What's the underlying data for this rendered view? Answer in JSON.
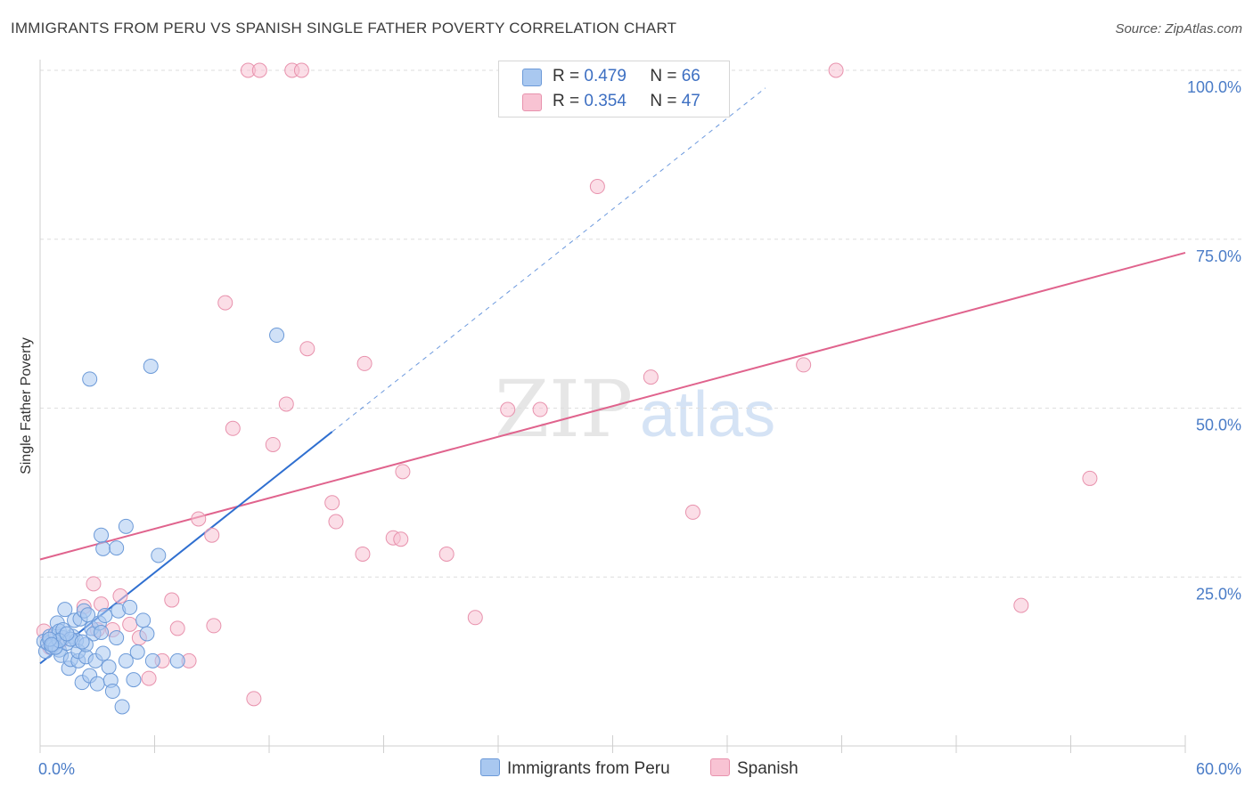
{
  "title": "IMMIGRANTS FROM PERU VS SPANISH SINGLE FATHER POVERTY CORRELATION CHART",
  "source": "Source: ZipAtlas.com",
  "legend_top": {
    "rows": [
      {
        "r_label": "R =",
        "r_value": "0.479",
        "n_label": "N =",
        "n_value": "66"
      },
      {
        "r_label": "R =",
        "r_value": "0.354",
        "n_label": "N =",
        "n_value": "47"
      }
    ]
  },
  "legend_bottom": {
    "series1": "Immigrants from Peru",
    "series2": "Spanish"
  },
  "watermark": {
    "zip": "ZIP",
    "atlas": "atlas"
  },
  "colors": {
    "blue_fill": "#a9c8f0",
    "blue_stroke": "#6c9ad8",
    "blue_line": "#2f6fd0",
    "pink_fill": "#f8c3d3",
    "pink_stroke": "#e892ad",
    "pink_line": "#e0638d",
    "tick_text": "#4a7cc7"
  },
  "chart_data": {
    "type": "scatter",
    "title": "IMMIGRANTS FROM PERU VS SPANISH SINGLE FATHER POVERTY CORRELATION CHART",
    "xlabel": "",
    "ylabel": "Single Father Poverty",
    "xlim": [
      0,
      60
    ],
    "ylim": [
      0,
      100
    ],
    "x_tick_labels": [
      "0.0%",
      "60.0%"
    ],
    "y_tick_labels": [
      "25.0%",
      "50.0%",
      "75.0%",
      "100.0%"
    ],
    "y_ticks": [
      25,
      50,
      75,
      100
    ],
    "series": [
      {
        "name": "Immigrants from Peru",
        "R": 0.479,
        "N": 66,
        "trend": {
          "x0": 0,
          "y0": 12.2,
          "x1": 15.3,
          "y1": 46.5,
          "dashed_to_x": 38.0
        },
        "points": [
          [
            0.2,
            15.5
          ],
          [
            0.3,
            14.0
          ],
          [
            0.4,
            15.2
          ],
          [
            0.5,
            16.2
          ],
          [
            0.6,
            14.6
          ],
          [
            0.7,
            15.0
          ],
          [
            0.8,
            16.6
          ],
          [
            0.9,
            18.2
          ],
          [
            1.0,
            14.2
          ],
          [
            1.0,
            17.0
          ],
          [
            1.1,
            13.4
          ],
          [
            1.2,
            16.0
          ],
          [
            1.3,
            20.2
          ],
          [
            1.4,
            15.2
          ],
          [
            1.5,
            11.5
          ],
          [
            1.6,
            12.8
          ],
          [
            1.7,
            16.2
          ],
          [
            1.8,
            18.6
          ],
          [
            1.9,
            15.6
          ],
          [
            2.0,
            12.6
          ],
          [
            2.0,
            14.0
          ],
          [
            2.1,
            18.8
          ],
          [
            2.2,
            9.4
          ],
          [
            2.3,
            20.0
          ],
          [
            2.4,
            13.2
          ],
          [
            2.5,
            19.4
          ],
          [
            2.6,
            10.4
          ],
          [
            2.7,
            17.4
          ],
          [
            2.8,
            16.6
          ],
          [
            2.9,
            12.6
          ],
          [
            3.0,
            9.2
          ],
          [
            3.1,
            18.2
          ],
          [
            3.2,
            16.8
          ],
          [
            3.3,
            13.7
          ],
          [
            3.4,
            19.3
          ],
          [
            3.6,
            11.7
          ],
          [
            3.7,
            9.7
          ],
          [
            3.8,
            8.1
          ],
          [
            4.0,
            16.0
          ],
          [
            4.1,
            20.0
          ],
          [
            4.3,
            5.8
          ],
          [
            4.5,
            12.6
          ],
          [
            4.7,
            20.5
          ],
          [
            4.9,
            9.8
          ],
          [
            5.1,
            13.9
          ],
          [
            5.4,
            18.6
          ],
          [
            5.6,
            16.6
          ],
          [
            5.9,
            12.6
          ],
          [
            6.2,
            28.2
          ],
          [
            3.3,
            29.2
          ],
          [
            4.0,
            29.3
          ],
          [
            3.2,
            31.2
          ],
          [
            4.5,
            32.5
          ],
          [
            2.6,
            54.3
          ],
          [
            5.8,
            56.2
          ],
          [
            12.4,
            60.8
          ],
          [
            7.2,
            12.6
          ],
          [
            1.2,
            17.2
          ],
          [
            0.8,
            14.6
          ],
          [
            1.6,
            15.8
          ],
          [
            2.4,
            15.0
          ],
          [
            1.0,
            15.6
          ],
          [
            0.5,
            15.8
          ],
          [
            0.6,
            15.0
          ],
          [
            1.4,
            16.6
          ],
          [
            2.2,
            15.4
          ]
        ]
      },
      {
        "name": "Spanish",
        "R": 0.354,
        "N": 47,
        "trend": {
          "x0": 0,
          "y0": 27.6,
          "x1": 60,
          "y1": 73.0
        },
        "points": [
          [
            0.2,
            17.0
          ],
          [
            0.5,
            14.6
          ],
          [
            1.1,
            15.6
          ],
          [
            2.3,
            20.6
          ],
          [
            2.8,
            24.0
          ],
          [
            3.2,
            21.0
          ],
          [
            3.8,
            17.2
          ],
          [
            4.2,
            22.2
          ],
          [
            4.7,
            18.0
          ],
          [
            5.2,
            16.0
          ],
          [
            5.7,
            10.0
          ],
          [
            6.4,
            12.6
          ],
          [
            6.9,
            21.6
          ],
          [
            7.2,
            17.4
          ],
          [
            7.8,
            12.6
          ],
          [
            8.3,
            33.6
          ],
          [
            9.0,
            31.2
          ],
          [
            9.1,
            17.8
          ],
          [
            9.7,
            65.6
          ],
          [
            10.1,
            47.0
          ],
          [
            11.2,
            7.0
          ],
          [
            12.2,
            44.6
          ],
          [
            12.9,
            50.6
          ],
          [
            14.0,
            58.8
          ],
          [
            15.3,
            36.0
          ],
          [
            15.5,
            33.2
          ],
          [
            16.9,
            28.4
          ],
          [
            17.0,
            56.6
          ],
          [
            18.5,
            30.8
          ],
          [
            18.9,
            30.6
          ],
          [
            19.0,
            40.6
          ],
          [
            21.3,
            28.4
          ],
          [
            22.8,
            19.0
          ],
          [
            24.5,
            49.8
          ],
          [
            26.2,
            49.8
          ],
          [
            29.2,
            82.8
          ],
          [
            32.0,
            54.6
          ],
          [
            34.2,
            34.6
          ],
          [
            40.0,
            56.4
          ],
          [
            41.7,
            100.0
          ],
          [
            10.9,
            100.0
          ],
          [
            11.5,
            100.0
          ],
          [
            13.2,
            100.0
          ],
          [
            13.7,
            100.0
          ],
          [
            51.4,
            20.8
          ],
          [
            55.0,
            39.6
          ],
          [
            3.0,
            17.2
          ]
        ]
      }
    ]
  }
}
